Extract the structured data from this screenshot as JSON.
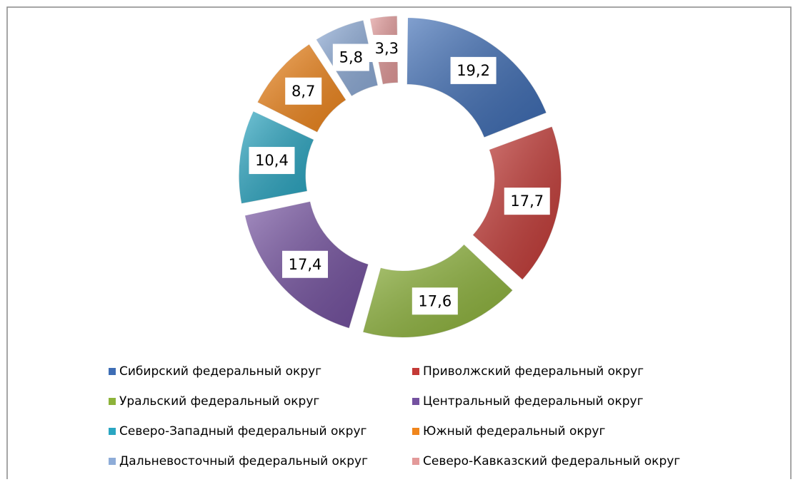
{
  "chart_data": {
    "type": "donut",
    "categories": [
      "Сибирский федеральный округ",
      "Приволжский федеральный округ",
      "Уральский федеральный округ",
      "Центральный федеральный округ",
      "Северо-Западный федеральный округ",
      "Южный федеральный округ",
      "Дальневосточный федеральный округ",
      "Северо-Кавказский федеральный округ"
    ],
    "values": [
      19.2,
      17.7,
      17.6,
      17.4,
      10.4,
      8.7,
      5.8,
      3.3
    ],
    "value_labels": [
      "19,2",
      "17,7",
      "17,6",
      "17,4",
      "10,4",
      "8,7",
      "5,8",
      "3,3"
    ],
    "colors": [
      "#3e6db5",
      "#c43a36",
      "#8db33a",
      "#7451a0",
      "#2aa6c2",
      "#f0861c",
      "#8eacd8",
      "#e39a9a"
    ],
    "legend": "bottom"
  }
}
